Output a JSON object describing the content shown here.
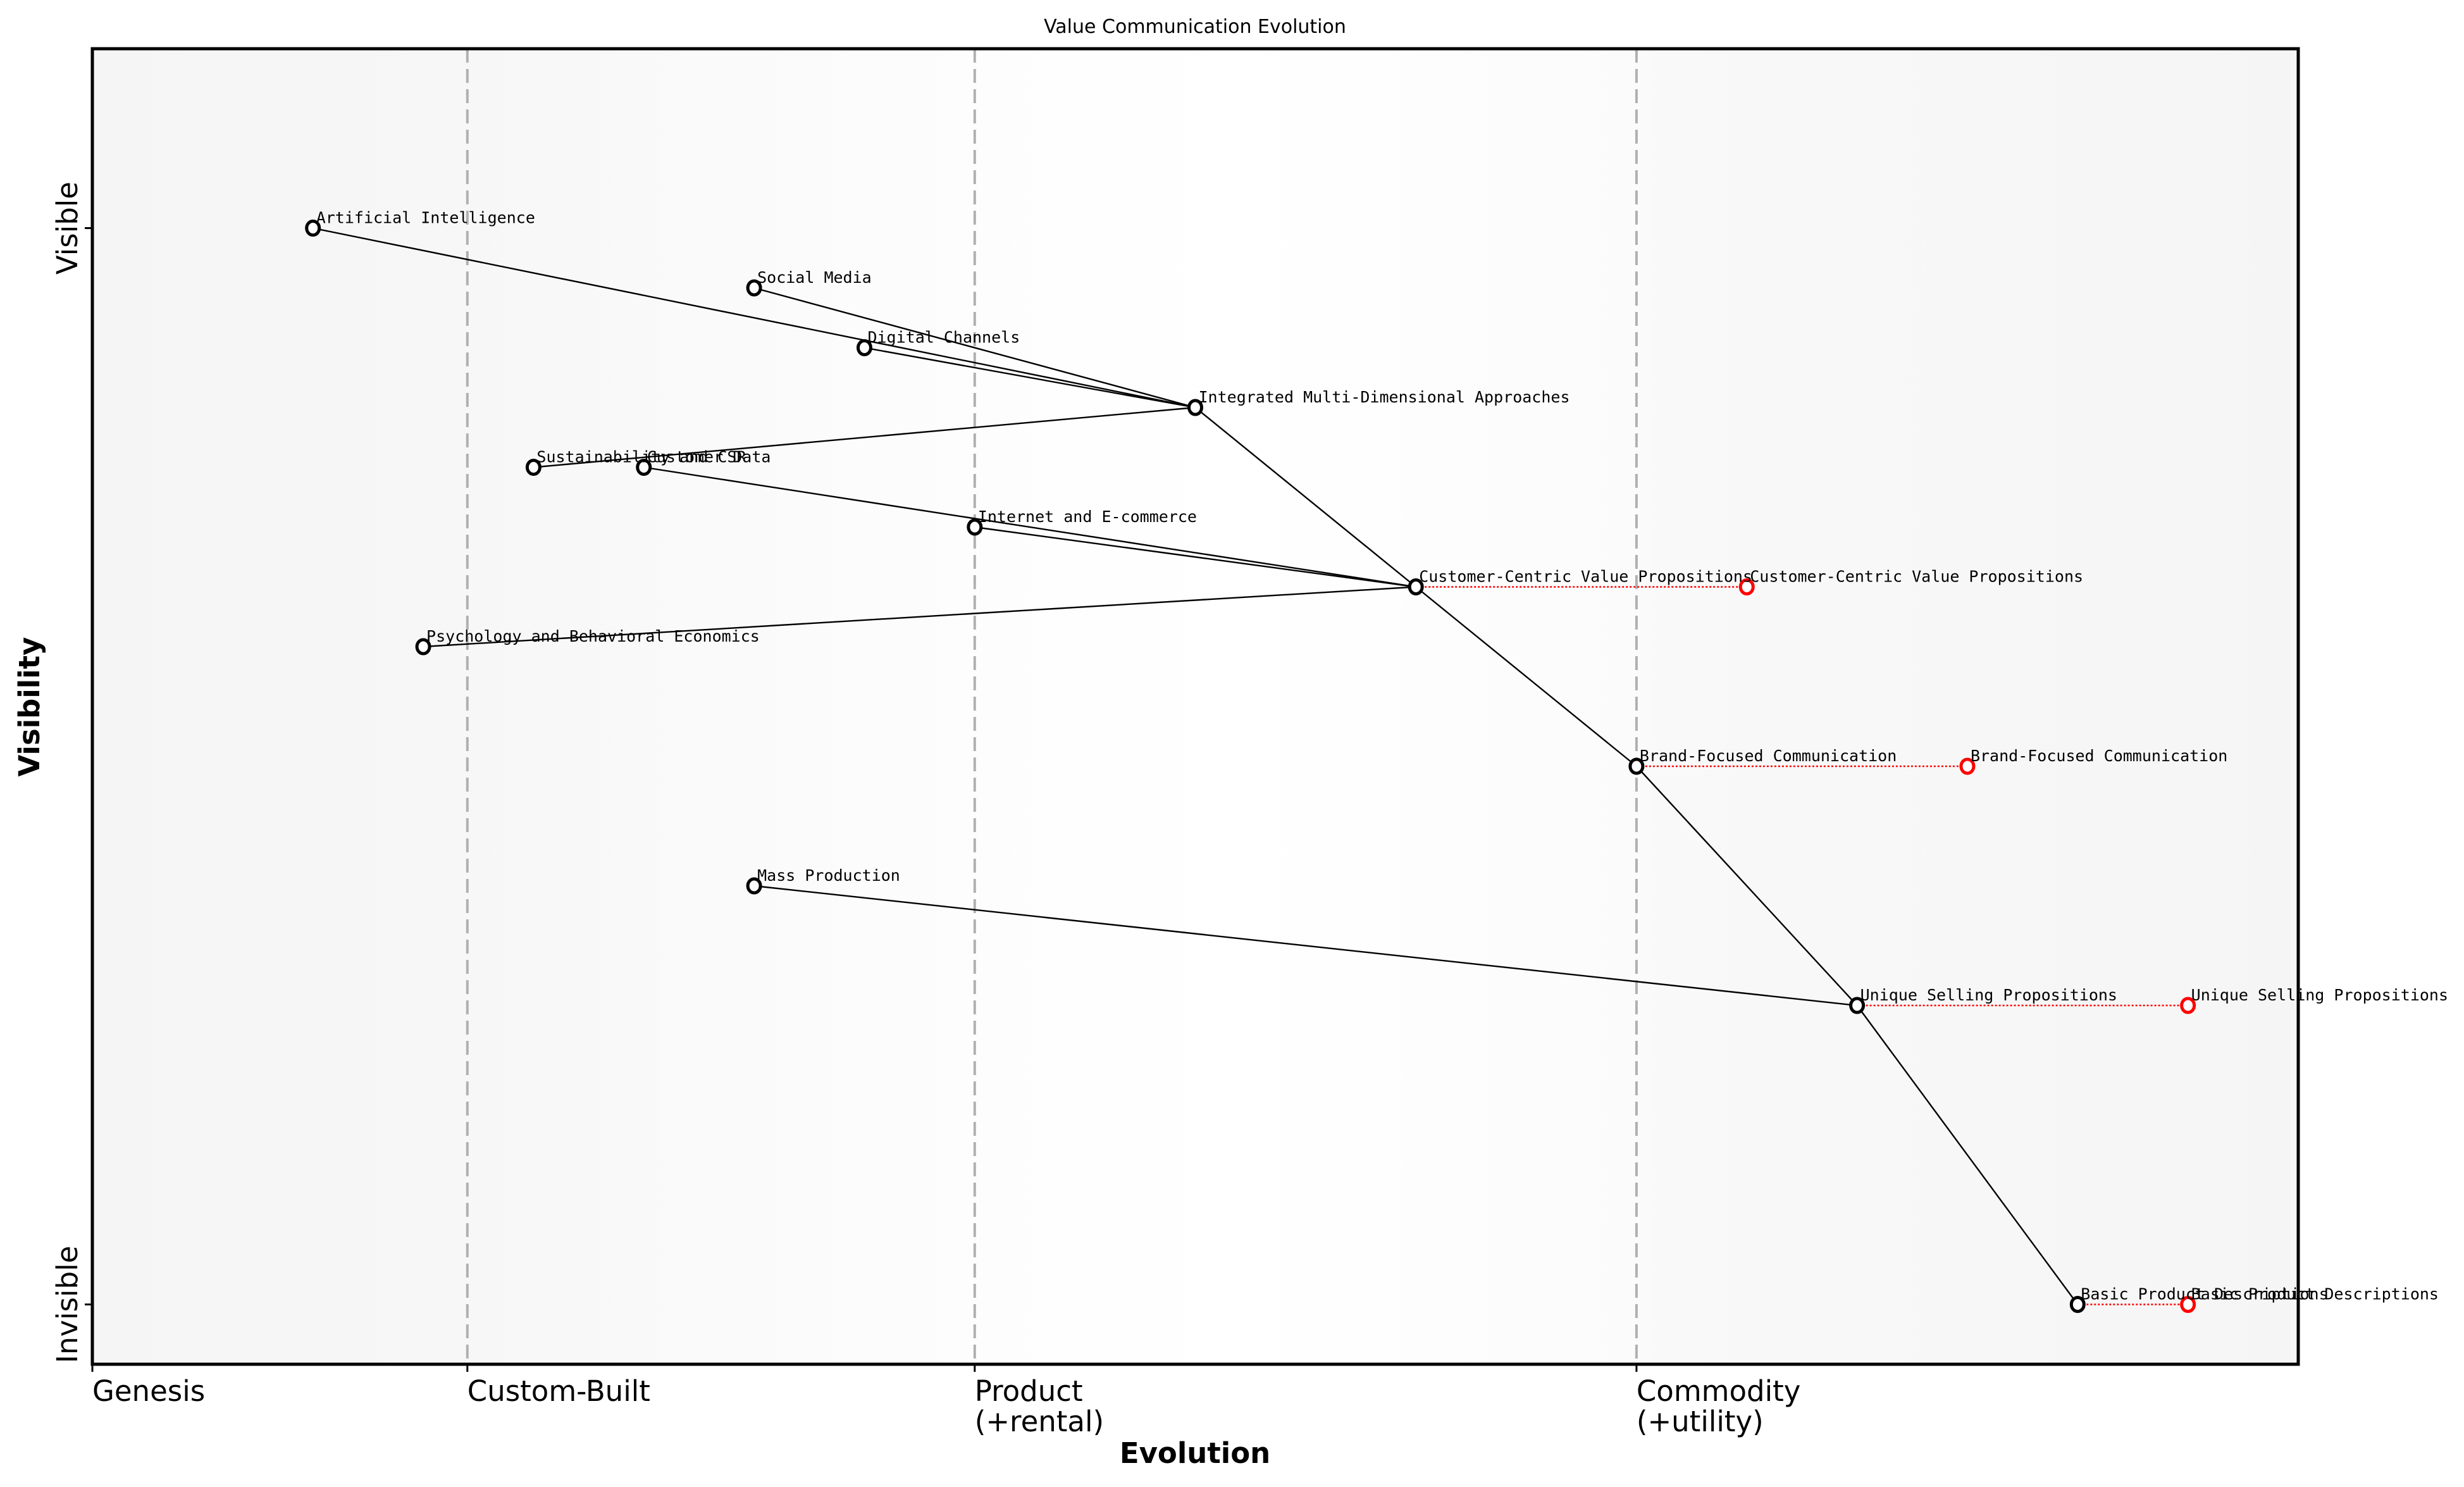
{
  "chart_data": {
    "type": "wardley-map",
    "title": "Value Communication Evolution",
    "xlabel": "Evolution",
    "ylabel": "Visibility",
    "xlim": [
      0,
      1
    ],
    "ylim": [
      0,
      1.1
    ],
    "x_ticks": [
      {
        "pos": 0.0,
        "label": "Genesis"
      },
      {
        "pos": 0.17,
        "label": "Custom-Built"
      },
      {
        "pos": 0.4,
        "label": "Product\n(+rental)"
      },
      {
        "pos": 0.7,
        "label": "Commodity\n(+utility)"
      }
    ],
    "y_ticks": [
      {
        "pos": 0.05,
        "label": "Invisible"
      },
      {
        "pos": 0.95,
        "label": "Visible"
      }
    ],
    "stage_dividers": [
      0.17,
      0.4,
      0.7
    ],
    "grid": false,
    "nodes": [
      {
        "id": "ai",
        "label": "Artificial Intelligence",
        "x": 0.1,
        "y": 0.95
      },
      {
        "id": "sm",
        "label": "Social Media",
        "x": 0.3,
        "y": 0.9
      },
      {
        "id": "dc",
        "label": "Digital Channels",
        "x": 0.35,
        "y": 0.85
      },
      {
        "id": "imda",
        "label": "Integrated Multi-Dimensional Approaches",
        "x": 0.5,
        "y": 0.8
      },
      {
        "id": "csr",
        "label": "Sustainability and CSR",
        "x": 0.2,
        "y": 0.75
      },
      {
        "id": "cd",
        "label": "Customer Data",
        "x": 0.25,
        "y": 0.75
      },
      {
        "id": "ie",
        "label": "Internet and E-commerce",
        "x": 0.4,
        "y": 0.7
      },
      {
        "id": "ccvp",
        "label": "Customer-Centric Value Propositions",
        "x": 0.6,
        "y": 0.65
      },
      {
        "id": "pbe",
        "label": "Psychology and Behavioral Economics",
        "x": 0.15,
        "y": 0.6
      },
      {
        "id": "bfc",
        "label": "Brand-Focused Communication",
        "x": 0.7,
        "y": 0.5
      },
      {
        "id": "mp",
        "label": "Mass Production",
        "x": 0.3,
        "y": 0.4
      },
      {
        "id": "usp",
        "label": "Unique Selling Propositions",
        "x": 0.8,
        "y": 0.3
      },
      {
        "id": "bpd",
        "label": "Basic Product Descriptions",
        "x": 0.9,
        "y": 0.05
      }
    ],
    "links": [
      {
        "from": "ai",
        "to": "imda"
      },
      {
        "from": "sm",
        "to": "imda"
      },
      {
        "from": "dc",
        "to": "imda"
      },
      {
        "from": "csr",
        "to": "imda"
      },
      {
        "from": "imda",
        "to": "ccvp"
      },
      {
        "from": "cd",
        "to": "ccvp"
      },
      {
        "from": "ie",
        "to": "ccvp"
      },
      {
        "from": "pbe",
        "to": "ccvp"
      },
      {
        "from": "ccvp",
        "to": "bfc"
      },
      {
        "from": "bfc",
        "to": "usp"
      },
      {
        "from": "mp",
        "to": "usp"
      },
      {
        "from": "usp",
        "to": "bpd"
      }
    ],
    "evolutions": [
      {
        "from": "ccvp",
        "label": "Customer-Centric Value Propositions",
        "x": 0.75,
        "y": 0.65
      },
      {
        "from": "bfc",
        "label": "Brand-Focused Communication",
        "x": 0.85,
        "y": 0.5
      },
      {
        "from": "usp",
        "label": "Unique Selling Propositions",
        "x": 0.95,
        "y": 0.3
      },
      {
        "from": "bpd",
        "label": "Basic Product Descriptions",
        "x": 0.95,
        "y": 0.05
      }
    ],
    "colors": {
      "node_stroke": "#000000",
      "evolved_stroke": "#ff0000",
      "link": "#000000",
      "evolution_line": "#ff0000",
      "stage_divider": "#b0b0b0",
      "bg_edge": "#f5f5f5",
      "bg_center": "#ffffff"
    }
  }
}
